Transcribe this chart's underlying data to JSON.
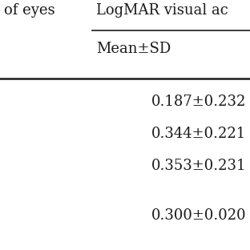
{
  "background_color": "#ffffff",
  "header1_left": "of eyes",
  "header1_right": "LogMAR visual ac",
  "header2_right": "Mean±SD",
  "data_rows": [
    "0.187±0.232",
    "0.344±0.221",
    "0.353±0.231",
    "",
    "0.300±0.020"
  ],
  "font_size": 13.0,
  "line_color": "#1a1a1a",
  "text_color": "#1a1a1a",
  "line_thin": 1.2,
  "line_thick": 1.8
}
